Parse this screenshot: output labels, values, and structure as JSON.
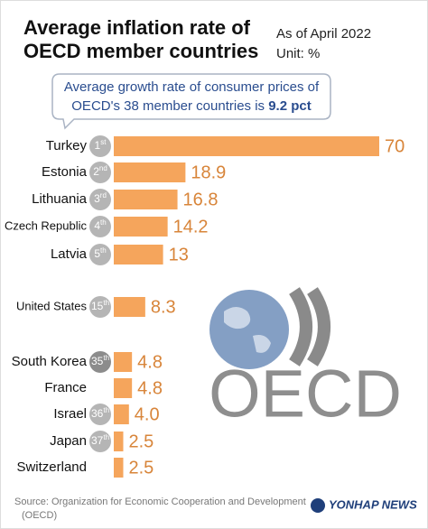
{
  "chart_data": {
    "type": "bar",
    "title": [
      "Average inflation rate of",
      "OECD member countries"
    ],
    "subtitle": [
      "As of April 2022",
      "Unit: %"
    ],
    "callout": {
      "line1": "Average growth rate of consumer prices of",
      "line2": "OECD's 38 member countries is ",
      "highlight": "9.2 pct"
    },
    "categories": [
      "Turkey",
      "Estonia",
      "Lithuania",
      "Czech Republic",
      "Latvia",
      "United States",
      "South Korea",
      "France",
      "Israel",
      "Japan",
      "Switzerland"
    ],
    "ranks": [
      "1st",
      "2nd",
      "3rd",
      "4th",
      "5th",
      "15th",
      "35th",
      null,
      "36th",
      "37th",
      null
    ],
    "values": [
      70,
      18.9,
      16.8,
      14.2,
      13,
      8.3,
      4.8,
      4.8,
      4.0,
      2.5,
      2.5
    ],
    "value_labels": [
      "70",
      "18.9",
      "16.8",
      "14.2",
      "13",
      "8.3",
      "4.8",
      "4.8",
      "4.0",
      "2.5",
      "2.5"
    ],
    "color": "#f5a55c",
    "logo_text": "OECD",
    "source": [
      "Source: Organization for Economic Cooperation and Development",
      "(OECD)"
    ],
    "credit": "YONHAP NEWS"
  }
}
